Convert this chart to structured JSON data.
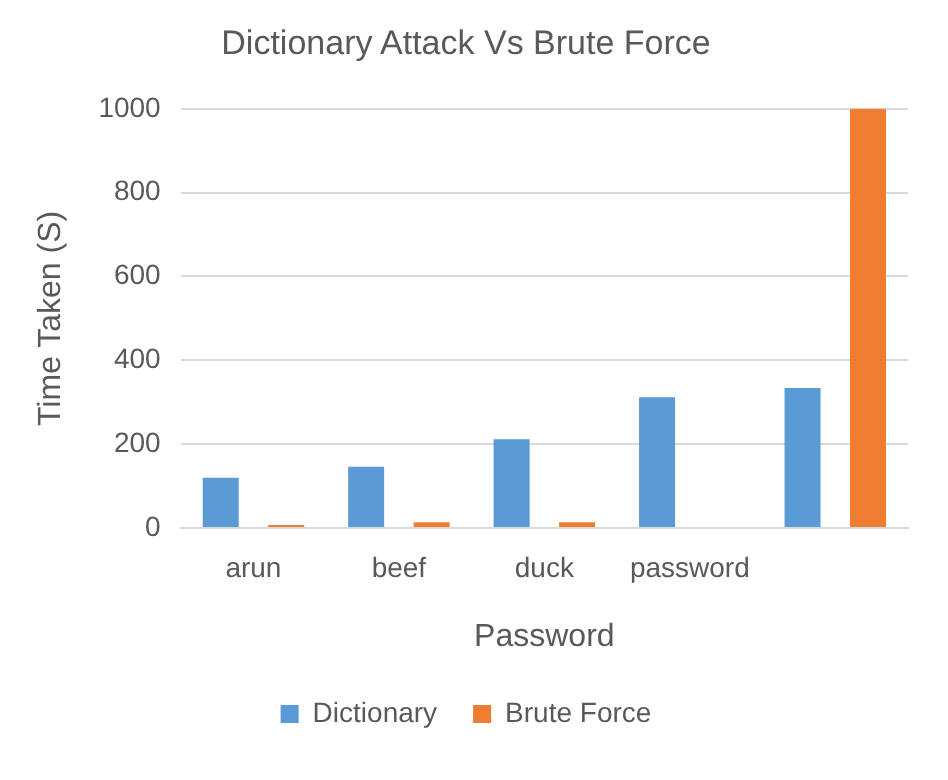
{
  "chart_data": {
    "type": "bar",
    "title": "Dictionary Attack Vs Brute Force",
    "xlabel": "Password",
    "ylabel": "Time Taken (S)",
    "categories": [
      "arun",
      "beef",
      "duck",
      "password",
      null
    ],
    "series": [
      {
        "name": "Dictionary",
        "color": "#5b9bd5",
        "values": [
          120,
          146,
          212,
          312,
          334
        ]
      },
      {
        "name": "Brute Force",
        "color": "#ed7d31",
        "values": [
          7,
          14,
          14,
          0,
          1000
        ]
      }
    ],
    "ylim": [
      0,
      1000
    ],
    "yticks": [
      0,
      200,
      400,
      600,
      800,
      1000
    ],
    "grid": "y",
    "legend": "bottom"
  }
}
